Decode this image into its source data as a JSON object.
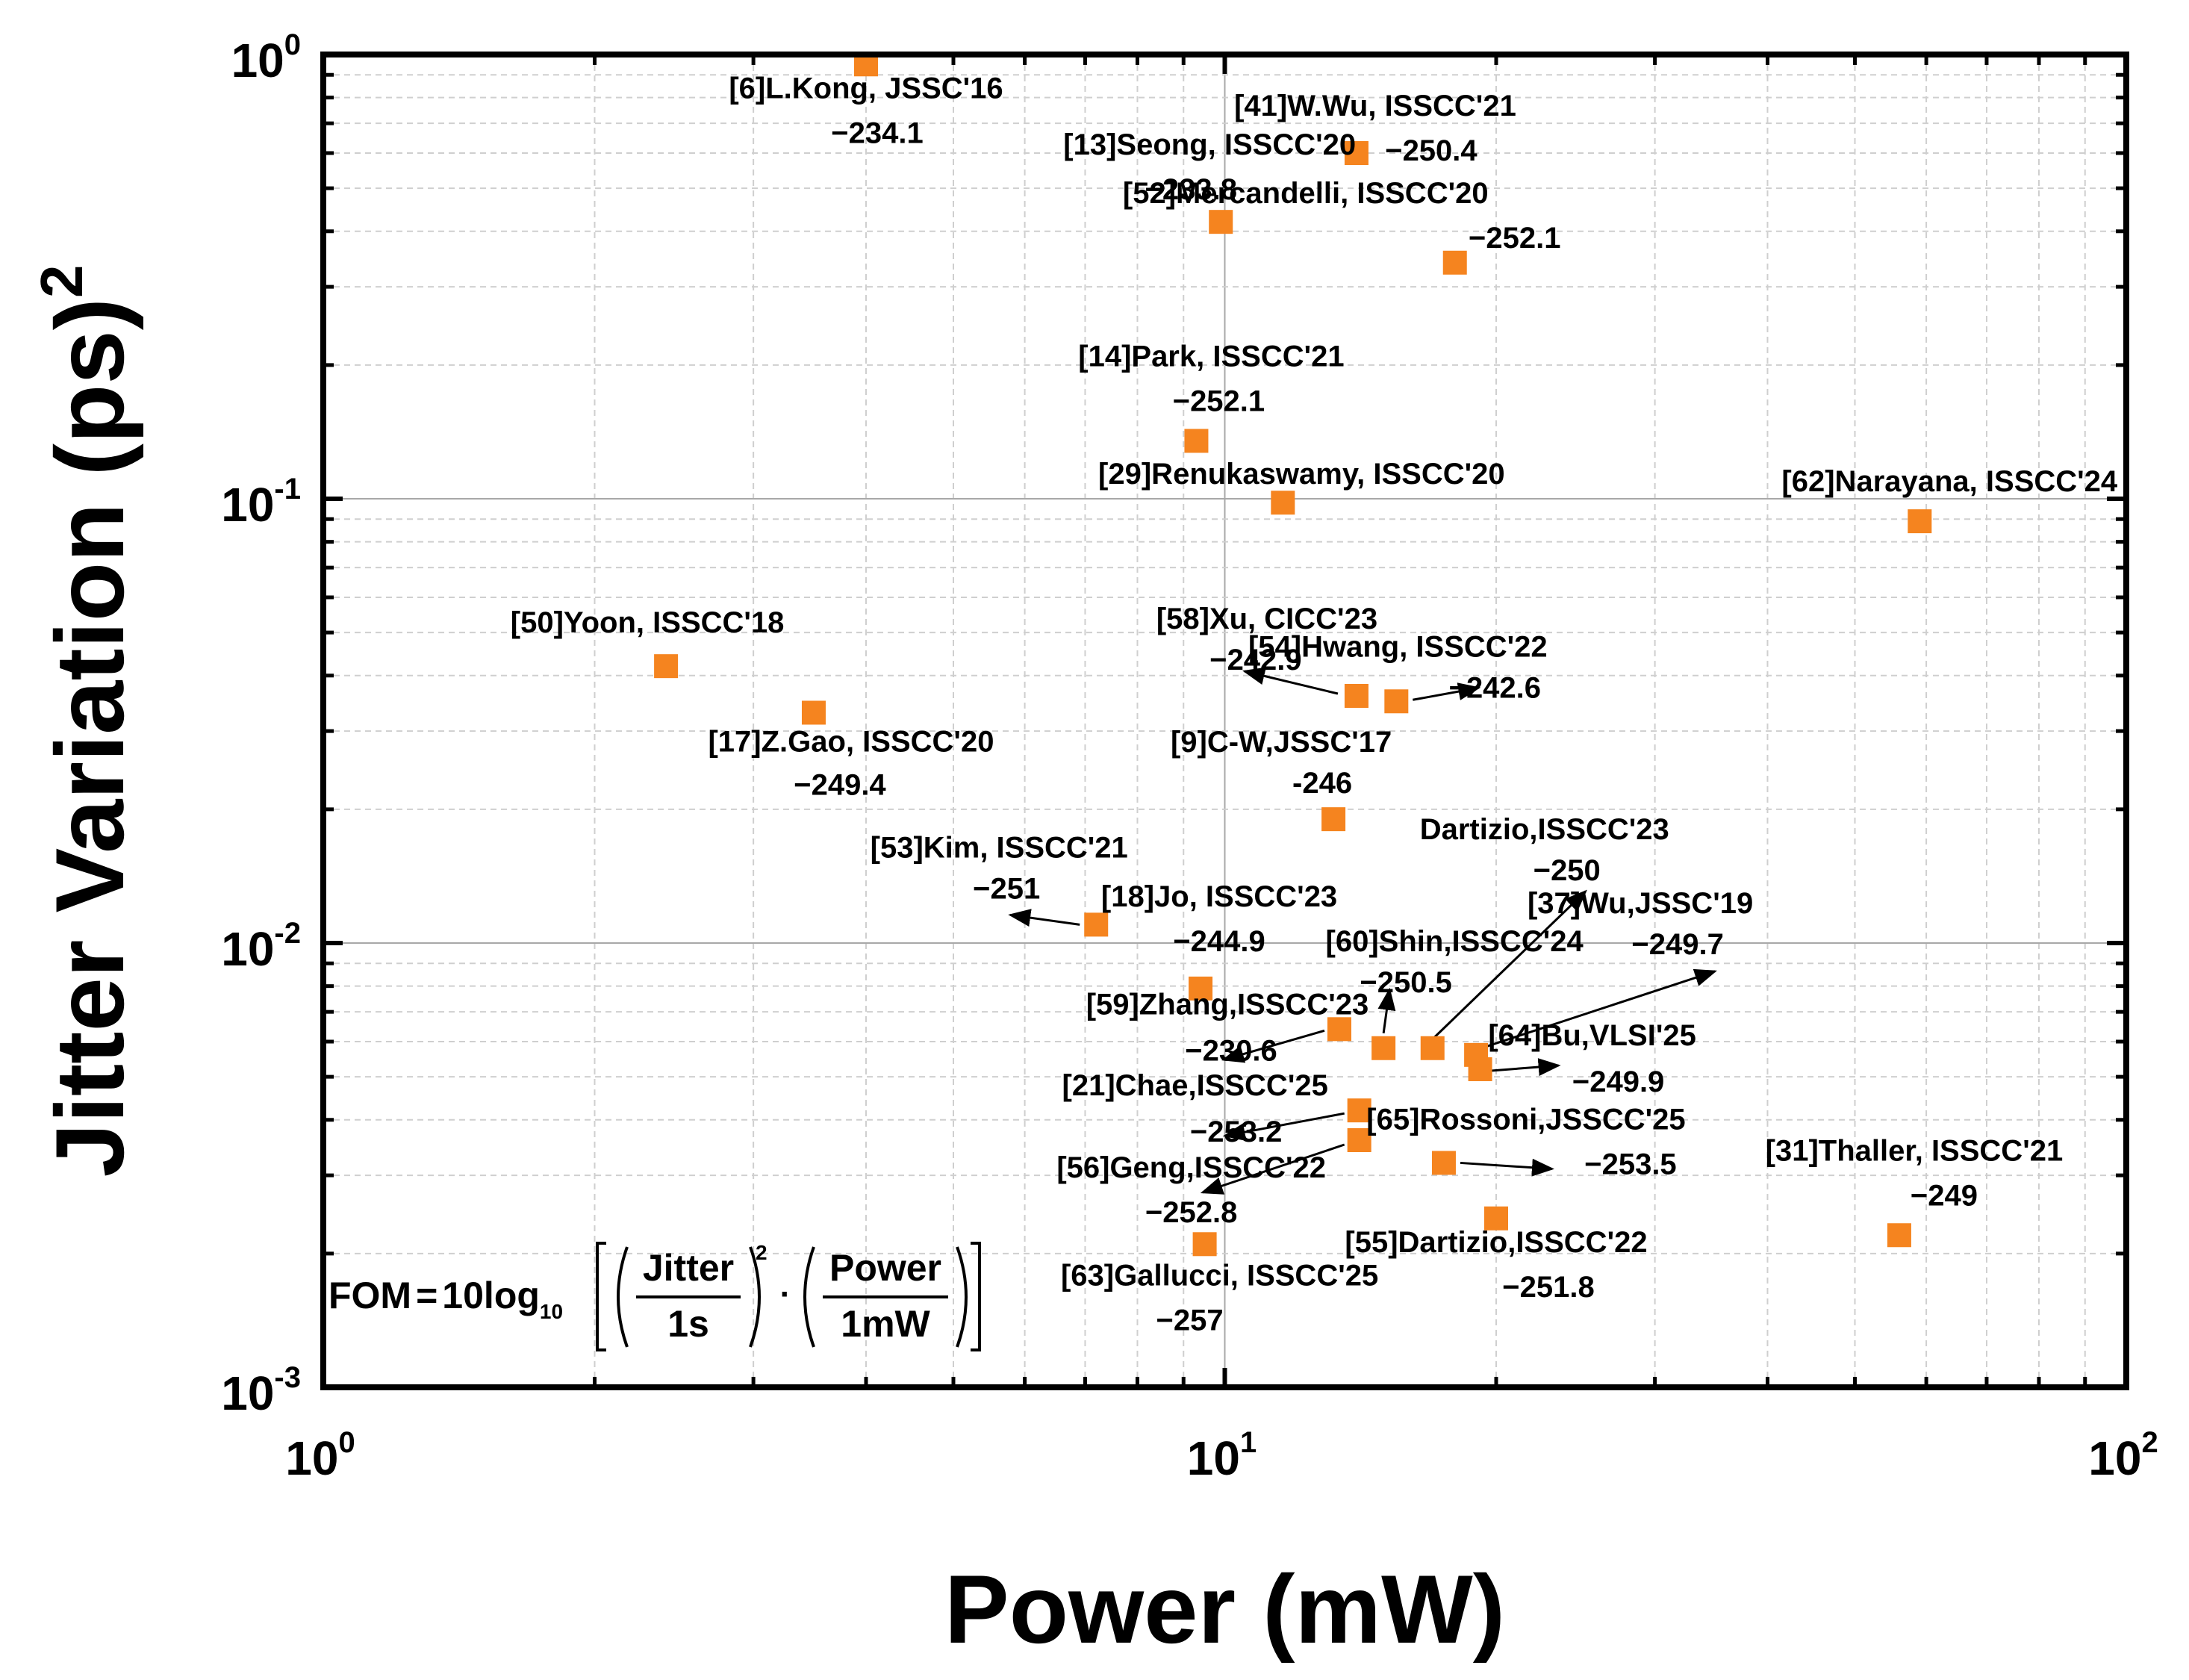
{
  "chart_data": {
    "type": "scatter",
    "title": "",
    "xlabel": "Power (mW)",
    "ylabel_main": "Jitter Variation (ps)",
    "ylabel_sup": "2",
    "xscale": "log",
    "yscale": "log",
    "xlim": [
      1,
      100
    ],
    "ylim": [
      0.001,
      1
    ],
    "x_ticks": [
      {
        "base": "10",
        "exp": "0"
      },
      {
        "base": "10",
        "exp": "1"
      },
      {
        "base": "10",
        "exp": "2"
      }
    ],
    "y_ticks": [
      {
        "base": "10",
        "exp": "-3"
      },
      {
        "base": "10",
        "exp": "-2"
      },
      {
        "base": "10",
        "exp": "-1"
      },
      {
        "base": "10",
        "exp": "0"
      }
    ],
    "marker_color": "#F5841F",
    "formula": {
      "lhs": "FOM",
      "eq": "=",
      "coef": "10",
      "log": "log",
      "log_sub": "10",
      "jitter_num": "Jitter",
      "jitter_den": "1s",
      "jitter_exp": "2",
      "power_num": "Power",
      "power_den": "1mW",
      "dot": "·"
    },
    "points": [
      {
        "ref": "[6]L.Kong, JSSC'16",
        "fom": "−234.1",
        "x": 4.0,
        "y": 0.95
      },
      {
        "ref": "[41]W.Wu, ISSCC'21",
        "fom": "−250.4",
        "x": 14.0,
        "y": 0.6
      },
      {
        "ref": "[13]Seong, ISSCC'20",
        "fom": "−233.8",
        "x": 9.9,
        "y": 0.42
      },
      {
        "ref": "[52]Mercandelli, ISSCC'20",
        "fom": "−252.1",
        "x": 18.0,
        "y": 0.34
      },
      {
        "ref": "[14]Park, ISSCC'21",
        "fom": "−252.1",
        "x": 9.3,
        "y": 0.135
      },
      {
        "ref": "[29]Renukaswamy, ISSCC'20",
        "fom": "",
        "x": 11.6,
        "y": 0.098
      },
      {
        "ref": "[62]Narayana, ISSCC'24",
        "fom": "",
        "x": 59.0,
        "y": 0.089
      },
      {
        "ref": "[50]Yoon, ISSCC'18",
        "fom": "",
        "x": 2.4,
        "y": 0.042
      },
      {
        "ref": "[17]Z.Gao, ISSCC'20",
        "fom": "−249.4",
        "x": 3.5,
        "y": 0.033
      },
      {
        "ref": "[58]Xu, CICC'23",
        "fom": "−242.9",
        "x": 14.0,
        "y": 0.036
      },
      {
        "ref": "[54]Hwang, ISSCC'22",
        "fom": "−242.6",
        "x": 15.5,
        "y": 0.035
      },
      {
        "ref": "[9]C-W,JSSC'17",
        "fom": "-246",
        "x": 13.2,
        "y": 0.019
      },
      {
        "ref": "[53]Kim, ISSCC'21",
        "fom": "−251",
        "x": 7.2,
        "y": 0.011
      },
      {
        "ref": "[18]Jo, ISSCC'23",
        "fom": "−244.9",
        "x": 9.4,
        "y": 0.0079
      },
      {
        "ref": "[59]Zhang,ISSCC'23",
        "fom": "−230.6",
        "x": 13.4,
        "y": 0.0064
      },
      {
        "ref": "[60]Shin,ISSCC'24",
        "fom": "−250.5",
        "x": 15.0,
        "y": 0.0058
      },
      {
        "ref": "Dartizio,ISSCC'23",
        "fom": "−250",
        "x": 17.0,
        "y": 0.0058
      },
      {
        "ref": "[37]Wu,JSSC'19",
        "fom": "−249.7",
        "x": 19.0,
        "y": 0.0056
      },
      {
        "ref": "[64]Bu,VLSI'25",
        "fom": "−249.9",
        "x": 19.2,
        "y": 0.0052
      },
      {
        "ref": "[21]Chae,ISSCC'25",
        "fom": "−253.2",
        "x": 14.1,
        "y": 0.0042
      },
      {
        "ref": "[56]Geng,ISSCC'22",
        "fom": "−252.8",
        "x": 14.1,
        "y": 0.0036
      },
      {
        "ref": "[65]Rossoni,JSSCC'25",
        "fom": "−253.5",
        "x": 17.5,
        "y": 0.0032
      },
      {
        "ref": "[55]Dartizio,ISSCC'22",
        "fom": "−251.8",
        "x": 20.0,
        "y": 0.0024
      },
      {
        "ref": "[31]Thaller, ISSCC'21",
        "fom": "−249",
        "x": 56.0,
        "y": 0.0022
      },
      {
        "ref": "[63]Gallucci, ISSCC'25",
        "fom": "−257",
        "x": 9.5,
        "y": 0.0021
      }
    ]
  }
}
